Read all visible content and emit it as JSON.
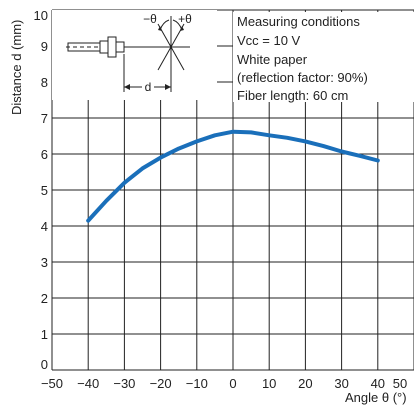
{
  "colors": {
    "curve": "#1a6fba",
    "grid": "#222222",
    "axis": "#222222",
    "text": "#222222"
  },
  "chart_data": {
    "type": "line",
    "title": "",
    "xlabel": "Angle θ (°)",
    "ylabel": "Distance d (mm)",
    "xlim": [
      -50,
      50
    ],
    "ylim": [
      0,
      10
    ],
    "grid": true,
    "x_ticks": [
      "−50",
      "−40",
      "−30",
      "−20",
      "−10",
      "0",
      "10",
      "20",
      "30",
      "40",
      "50"
    ],
    "y_ticks": [
      "0",
      "1",
      "2",
      "3",
      "4",
      "5",
      "6",
      "7",
      "8",
      "9",
      "10"
    ],
    "series": [
      {
        "x": [
          -40,
          -35,
          -30,
          -25,
          -20,
          -15,
          -10,
          -5,
          0,
          5,
          10,
          15,
          20,
          25,
          30,
          35,
          40
        ],
        "y": [
          4.15,
          4.7,
          5.2,
          5.6,
          5.9,
          6.15,
          6.35,
          6.52,
          6.62,
          6.6,
          6.52,
          6.45,
          6.35,
          6.22,
          6.07,
          5.95,
          5.82
        ]
      }
    ],
    "annotations": {
      "conditions": [
        "Measuring conditions",
        "Vcc = 10 V",
        "White paper",
        "(reflection factor: 90%)",
        "Fiber length: 60 cm"
      ],
      "inset": {
        "minus_theta": "−θ",
        "plus_theta": "+θ",
        "d": "d"
      }
    }
  }
}
